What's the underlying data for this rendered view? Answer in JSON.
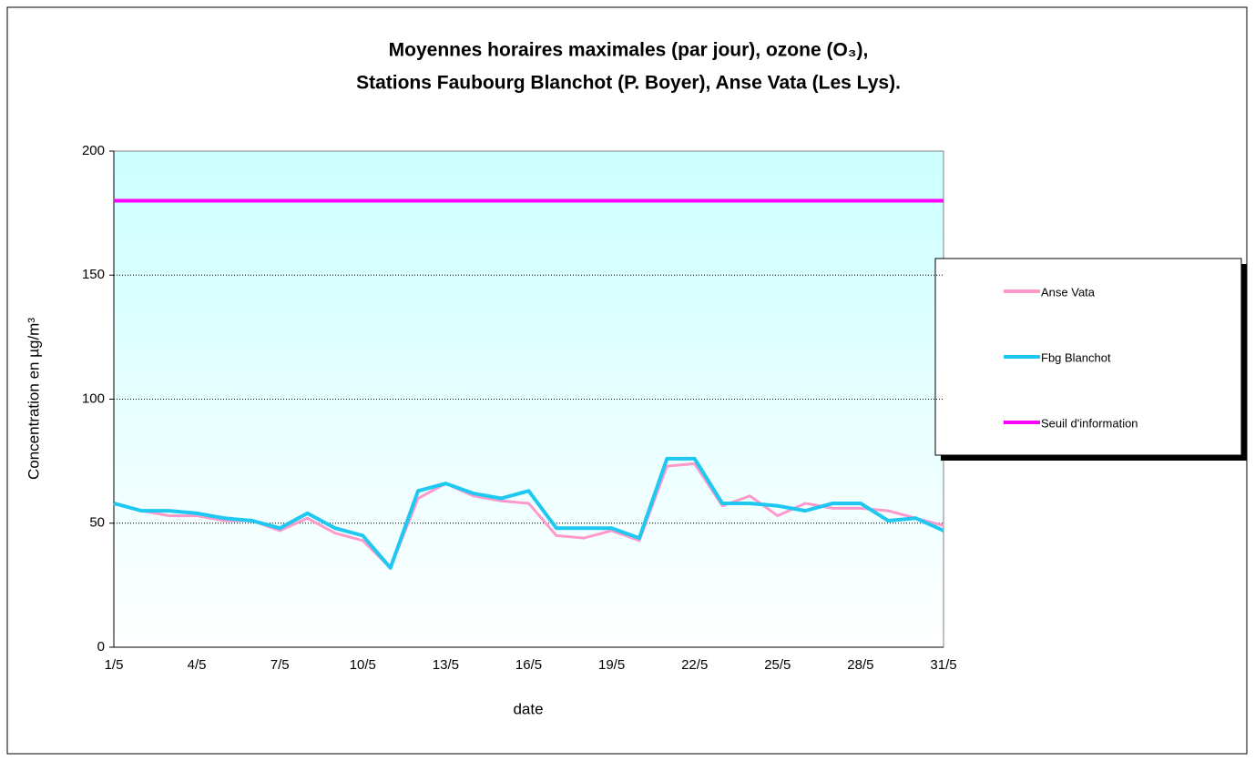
{
  "chart_data": {
    "type": "line",
    "title": [
      "Moyennes horaires maximales (par jour), ozone (O₃),",
      "Stations Faubourg Blanchot (P. Boyer), Anse Vata (Les Lys)."
    ],
    "x_label": "date",
    "y_label": "Concentration en µg/m³",
    "categories": [
      "1/5",
      null,
      null,
      "4/5",
      null,
      null,
      "7/5",
      null,
      null,
      "10/5",
      null,
      null,
      "13/5",
      null,
      null,
      "16/5",
      null,
      null,
      "19/5",
      null,
      null,
      "22/5",
      null,
      null,
      "25/5",
      null,
      null,
      "28/5",
      null,
      null,
      "31/5"
    ],
    "series": [
      {
        "name": "Anse Vata",
        "color": "#ff99cc",
        "values": [
          58,
          55,
          53,
          53,
          51,
          51,
          47,
          52,
          46,
          43,
          32,
          60,
          66,
          61,
          59,
          58,
          45,
          44,
          47,
          43,
          73,
          74,
          57,
          61,
          53,
          58,
          56,
          56,
          55,
          52,
          49
        ]
      },
      {
        "name": "Fbg Blanchot",
        "color": "#1ec8f0",
        "values": [
          58,
          55,
          55,
          54,
          52,
          51,
          48,
          54,
          48,
          45,
          32,
          63,
          66,
          62,
          60,
          63,
          48,
          48,
          48,
          44,
          76,
          76,
          58,
          58,
          57,
          55,
          58,
          58,
          51,
          52,
          47
        ]
      },
      {
        "name": "Seuil d'information",
        "color": "#ff00ff",
        "values": [
          180,
          180,
          180,
          180,
          180,
          180,
          180,
          180,
          180,
          180,
          180,
          180,
          180,
          180,
          180,
          180,
          180,
          180,
          180,
          180,
          180,
          180,
          180,
          180,
          180,
          180,
          180,
          180,
          180,
          180,
          180
        ]
      }
    ],
    "ylim": [
      0,
      200
    ],
    "yticks": [
      0,
      50,
      100,
      150,
      200
    ],
    "grid": true,
    "legend": "right"
  }
}
